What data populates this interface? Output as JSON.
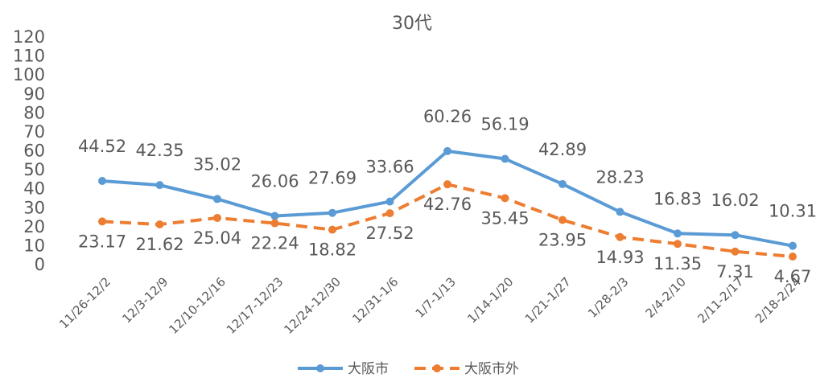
{
  "chart_data": {
    "type": "line",
    "title": "30代",
    "categories": [
      "11/26-12/2",
      "12/3-12/9",
      "12/10-12/16",
      "12/17-12/23",
      "12/24-12/30",
      "12/31-1/6",
      "1/7-1/13",
      "1/14-1/20",
      "1/21-1/27",
      "1/28-2/3",
      "2/4-2/10",
      "2/11-2/17",
      "2/18-2/24"
    ],
    "series": [
      {
        "name": "大阪市",
        "color": "#5b9bd5",
        "dashed": false,
        "values": [
          44.52,
          42.35,
          35.02,
          26.06,
          27.69,
          33.66,
          60.26,
          56.19,
          42.89,
          28.23,
          16.83,
          16.02,
          10.31
        ]
      },
      {
        "name": "大阪市外",
        "color": "#ed7d31",
        "dashed": true,
        "values": [
          23.17,
          21.62,
          25.04,
          22.24,
          18.82,
          27.52,
          42.76,
          35.45,
          23.95,
          14.93,
          11.35,
          7.31,
          4.67
        ]
      }
    ],
    "ylim": [
      0,
      120
    ],
    "yticks": [
      0,
      10,
      20,
      30,
      40,
      50,
      60,
      70,
      80,
      90,
      100,
      110,
      120
    ],
    "grid": false,
    "legend": "bottom"
  }
}
